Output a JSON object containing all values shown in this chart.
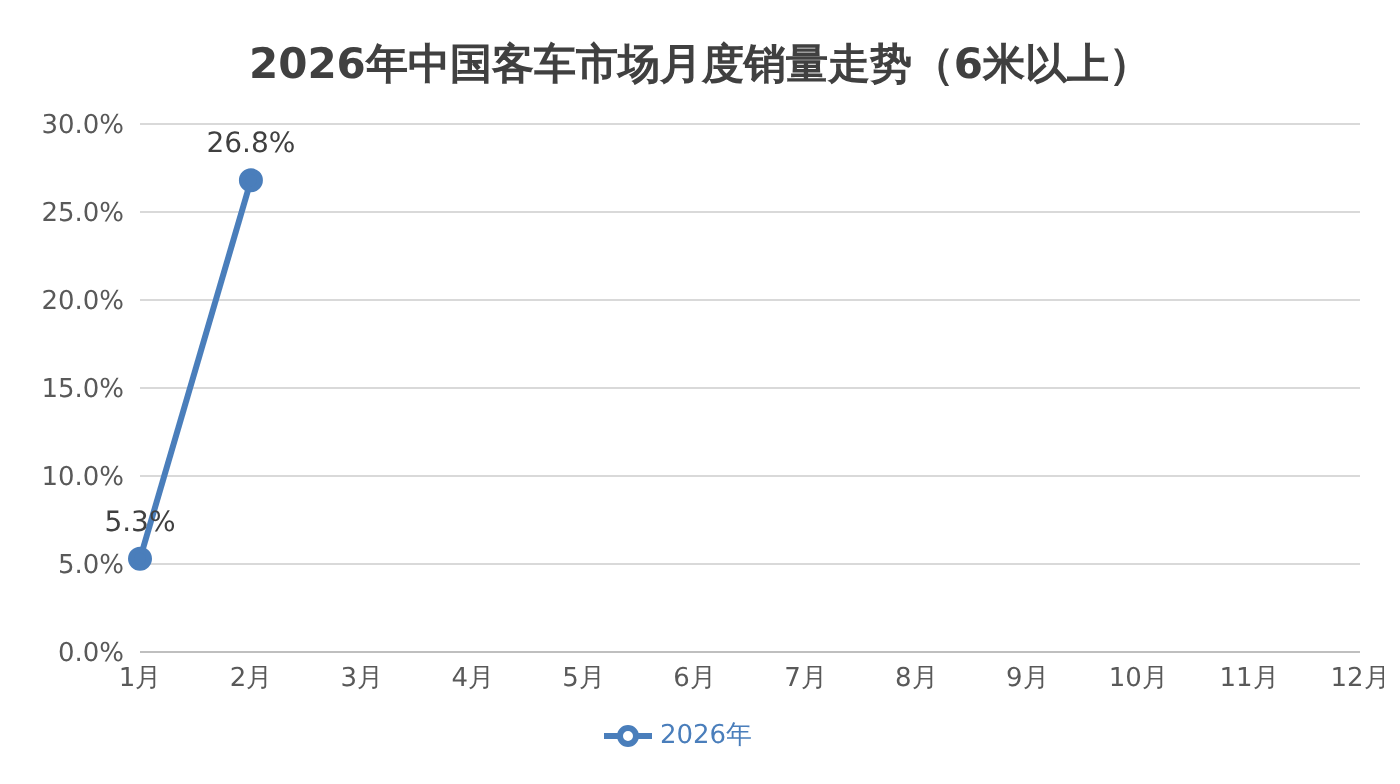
{
  "chart_data": {
    "type": "line",
    "title": "2026年中国客车市场月度销量走势（6米以上）",
    "categories": [
      "1月",
      "2月",
      "3月",
      "4月",
      "5月",
      "6月",
      "7月",
      "8月",
      "9月",
      "10月",
      "11月",
      "12月"
    ],
    "series": [
      {
        "name": "2026年",
        "color": "#4a7ebb",
        "values": [
          5.3,
          26.8,
          null,
          null,
          null,
          null,
          null,
          null,
          null,
          null,
          null,
          null
        ],
        "value_labels": [
          "5.3%",
          "26.8%",
          null,
          null,
          null,
          null,
          null,
          null,
          null,
          null,
          null,
          null
        ]
      }
    ],
    "ylim": [
      0,
      30
    ],
    "yticks": [
      {
        "value": 0,
        "label": "0.0%"
      },
      {
        "value": 5,
        "label": "5.0%"
      },
      {
        "value": 10,
        "label": "10.0%"
      },
      {
        "value": 15,
        "label": "15.0%"
      },
      {
        "value": 20,
        "label": "20.0%"
      },
      {
        "value": 25,
        "label": "25.0%"
      },
      {
        "value": 30,
        "label": "30.0%"
      }
    ],
    "grid": "y",
    "legend": "bottom",
    "marker": "circle",
    "line_style": "solid"
  }
}
